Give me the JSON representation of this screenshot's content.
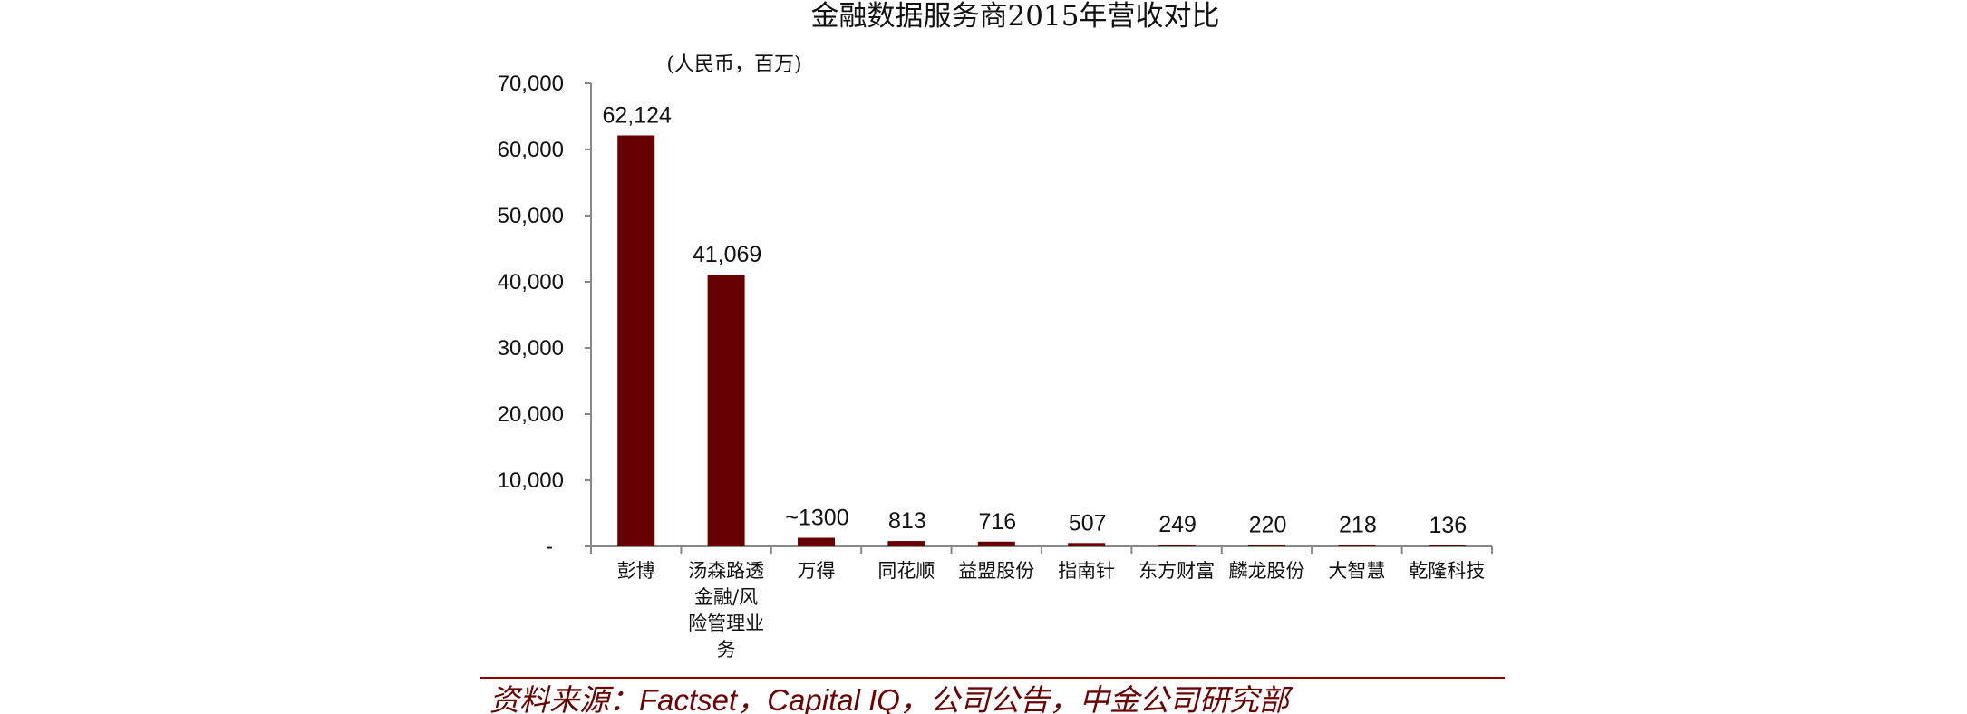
{
  "chart_data": {
    "type": "bar",
    "title": "金融数据服务商2015年营收对比",
    "unit_label": "(人民币，百万)",
    "xlabel": "",
    "ylabel": "",
    "categories": [
      "彭博",
      "汤森路透金融/风险管理业务",
      "万得",
      "同花顺",
      "益盟股份",
      "指南针",
      "东方财富",
      "麟龙股份",
      "大智慧",
      "乾隆科技"
    ],
    "category_lines": [
      [
        "彭博"
      ],
      [
        "汤森路透",
        "金融/风",
        "险管理业",
        "务"
      ],
      [
        "万得"
      ],
      [
        "同花顺"
      ],
      [
        "益盟股份"
      ],
      [
        "指南针"
      ],
      [
        "东方财富"
      ],
      [
        "麟龙股份"
      ],
      [
        "大智慧"
      ],
      [
        "乾隆科技"
      ]
    ],
    "values": [
      62124,
      41069,
      1300,
      813,
      716,
      507,
      249,
      220,
      218,
      136
    ],
    "data_labels": [
      "62,124",
      "41,069",
      "~1300",
      "813",
      "716",
      "507",
      "249",
      "220",
      "218",
      "136"
    ],
    "ylim": [
      0,
      70000
    ],
    "yticks": [
      0,
      10000,
      20000,
      30000,
      40000,
      50000,
      60000,
      70000
    ],
    "ytick_labels": [
      "-",
      "10,000",
      "20,000",
      "30,000",
      "40,000",
      "50,000",
      "60,000",
      "70,000"
    ],
    "bar_color": "#660000",
    "grid": false,
    "legend": "none"
  },
  "source_note": "资料来源：Factset，Capital IQ，公司公告，中金公司研究部",
  "colors": {
    "bar": "#660000",
    "source_text": "#6b0000",
    "source_rule": "#8b0000",
    "axis": "#888888"
  }
}
